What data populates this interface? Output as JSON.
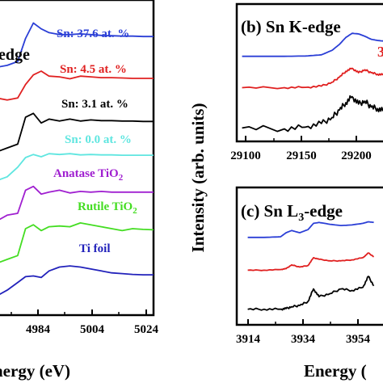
{
  "panel_a": {
    "panel_title": "edge",
    "xlabel": "Energy (eV)",
    "xticks": [
      "4984",
      "5004",
      "5024"
    ],
    "curves": [
      {
        "label": "Sn: 37.6 at. %",
        "color": "#2b3fd6"
      },
      {
        "label": "Sn: 4.5 at. %",
        "color": "#e02020"
      },
      {
        "label": "Sn: 3.1 at. %",
        "color": "#000000"
      },
      {
        "label": "Sn: 0.0 at. %",
        "color": "#5fe6e0"
      },
      {
        "label_main": "Anatase TiO",
        "label_sub": "2",
        "color": "#a020d0"
      },
      {
        "label_main": "Rutile TiO",
        "label_sub": "2",
        "color": "#44dd22"
      },
      {
        "label": "Ti foil",
        "color": "#2222bb"
      }
    ]
  },
  "ylabel": "Intensity (arb. units)",
  "panel_b": {
    "panel_title": "(b) Sn K-edge",
    "xticks": [
      "29100",
      "29150",
      "29200"
    ],
    "colors": [
      "#2b3fd6",
      "#e02020",
      "#000000"
    ]
  },
  "panel_c": {
    "title_main": "(c) Sn L",
    "title_sub": "3",
    "title_end": "-edge",
    "xticks": [
      "3914",
      "3934",
      "3954"
    ],
    "xlabel": "Energy (",
    "colors": [
      "#2b3fd6",
      "#e02020",
      "#000000"
    ]
  },
  "chart_data": [
    {
      "type": "line",
      "panel": "a",
      "xlabel": "Energy (eV)",
      "ylabel": "",
      "x_ticks": [
        4984,
        5004,
        5024
      ],
      "series": [
        {
          "name": "Sn: 37.6 at. %",
          "x": [
            4964,
            4968,
            4972,
            4975,
            4978,
            4981,
            4984,
            4988,
            4992,
            4996,
            5000,
            5004,
            5008,
            5012,
            5016,
            5020,
            5024
          ],
          "y": [
            6.15,
            6.2,
            6.3,
            6.9,
            7.3,
            7.15,
            7.05,
            7.0,
            7.0,
            7.02,
            7.0,
            6.98,
            6.97,
            6.96,
            6.96,
            6.95,
            6.95
          ]
        },
        {
          "name": "Sn: 4.5 at. %",
          "x": [
            4964,
            4968,
            4972,
            4975,
            4978,
            4981,
            4984,
            4988,
            4992,
            4996,
            5000,
            5004,
            5008,
            5012,
            5016,
            5020,
            5024
          ],
          "y": [
            5.35,
            5.3,
            5.35,
            5.7,
            5.95,
            6.05,
            5.92,
            5.9,
            5.85,
            5.92,
            5.9,
            5.88,
            5.88,
            5.87,
            5.86,
            5.86,
            5.86
          ]
        },
        {
          "name": "Sn: 3.1 at. %",
          "x": [
            4964,
            4968,
            4972,
            4975,
            4978,
            4981,
            4984,
            4988,
            4992,
            4996,
            5000,
            5004,
            5008,
            5012,
            5016,
            5020,
            5024
          ],
          "y": [
            3.95,
            4.05,
            4.15,
            4.85,
            4.95,
            4.7,
            4.8,
            4.75,
            4.8,
            4.75,
            4.78,
            4.76,
            4.76,
            4.75,
            4.75,
            4.74,
            4.74
          ]
        },
        {
          "name": "Sn: 0.0 at. %",
          "x": [
            4964,
            4968,
            4972,
            4975,
            4978,
            4981,
            4984,
            4988,
            4992,
            4996,
            5000,
            5004,
            5008,
            5012,
            5016,
            5020,
            5024
          ],
          "y": [
            3.2,
            3.3,
            3.55,
            3.8,
            3.88,
            3.82,
            3.9,
            3.88,
            3.9,
            3.87,
            3.88,
            3.87,
            3.87,
            3.86,
            3.86,
            3.86,
            3.86
          ]
        },
        {
          "name": "Anatase TiO2",
          "x": [
            4964,
            4968,
            4972,
            4975,
            4978,
            4981,
            4984,
            4988,
            4992,
            4996,
            5000,
            5004,
            5008,
            5012,
            5016,
            5020,
            5024
          ],
          "y": [
            2.15,
            2.3,
            2.35,
            2.95,
            3.05,
            2.85,
            2.9,
            2.95,
            2.88,
            2.92,
            2.9,
            2.92,
            2.9,
            2.9,
            2.9,
            2.9,
            2.9
          ]
        },
        {
          "name": "Rutile TiO2",
          "x": [
            4964,
            4968,
            4972,
            4975,
            4978,
            4981,
            4984,
            4988,
            4992,
            4996,
            5000,
            5004,
            5008,
            5012,
            5016,
            5020,
            5024
          ],
          "y": [
            1.05,
            1.15,
            1.25,
            1.95,
            2.05,
            1.9,
            2.0,
            2.02,
            2.0,
            2.1,
            2.05,
            2.0,
            1.95,
            1.9,
            1.95,
            1.93,
            1.92
          ]
        },
        {
          "name": "Ti foil",
          "x": [
            4964,
            4968,
            4972,
            4975,
            4978,
            4981,
            4984,
            4988,
            4992,
            4996,
            5000,
            5004,
            5008,
            5012,
            5016,
            5020,
            5024
          ],
          "y": [
            0.2,
            0.35,
            0.55,
            0.7,
            0.72,
            0.68,
            0.85,
            0.95,
            0.98,
            0.95,
            0.9,
            0.85,
            0.8,
            0.78,
            0.76,
            0.75,
            0.75
          ]
        }
      ]
    },
    {
      "type": "line",
      "panel": "b",
      "title": "(b) Sn K-edge",
      "x_ticks": [
        29100,
        29150,
        29200
      ],
      "series": [
        {
          "x": [
            29100,
            29140,
            29160,
            29175,
            29185,
            29192,
            29198,
            29204,
            29210,
            29216,
            29222,
            29228,
            29234
          ],
          "y": [
            2.55,
            2.55,
            2.56,
            2.6,
            2.75,
            2.95,
            3.18,
            3.32,
            3.3,
            3.22,
            3.12,
            3.08,
            3.06
          ]
        },
        {
          "x": [
            29100,
            29140,
            29160,
            29175,
            29185,
            29192,
            29198,
            29204,
            29210,
            29216,
            29222,
            29228,
            29234
          ],
          "y": [
            1.5,
            1.5,
            1.51,
            1.55,
            1.68,
            1.85,
            2.05,
            2.15,
            2.0,
            2.1,
            2.0,
            1.95,
            1.93
          ]
        },
        {
          "x": [
            29100,
            29140,
            29160,
            29175,
            29185,
            29192,
            29198,
            29204,
            29210,
            29216,
            29222,
            29228,
            29234
          ],
          "y": [
            0.15,
            0.12,
            0.18,
            0.3,
            0.5,
            0.75,
            1.0,
            1.2,
            0.95,
            1.05,
            0.85,
            0.8,
            0.72
          ]
        }
      ]
    },
    {
      "type": "line",
      "panel": "c",
      "x_ticks": [
        3914,
        3934,
        3954
      ],
      "series": [
        {
          "x": [
            3914,
            3920,
            3926,
            3928,
            3930,
            3933,
            3936,
            3938,
            3940,
            3944,
            3948,
            3952,
            3956,
            3958,
            3960
          ],
          "y": [
            2.6,
            2.6,
            2.62,
            2.75,
            2.82,
            2.75,
            2.85,
            3.05,
            3.08,
            3.02,
            2.98,
            3.0,
            3.05,
            3.1,
            3.08
          ]
        },
        {
          "x": [
            3914,
            3920,
            3926,
            3928,
            3930,
            3933,
            3936,
            3938,
            3940,
            3944,
            3948,
            3952,
            3956,
            3958,
            3960
          ],
          "y": [
            1.55,
            1.55,
            1.57,
            1.6,
            1.72,
            1.65,
            1.7,
            1.95,
            1.9,
            1.85,
            1.85,
            1.88,
            1.95,
            2.1,
            1.98
          ]
        },
        {
          "x": [
            3914,
            3920,
            3926,
            3928,
            3930,
            3933,
            3936,
            3938,
            3940,
            3944,
            3948,
            3952,
            3956,
            3958,
            3960
          ],
          "y": [
            0.3,
            0.3,
            0.3,
            0.32,
            0.38,
            0.42,
            0.55,
            0.95,
            0.7,
            0.8,
            0.95,
            0.9,
            1.0,
            1.35,
            1.05
          ]
        }
      ]
    }
  ]
}
